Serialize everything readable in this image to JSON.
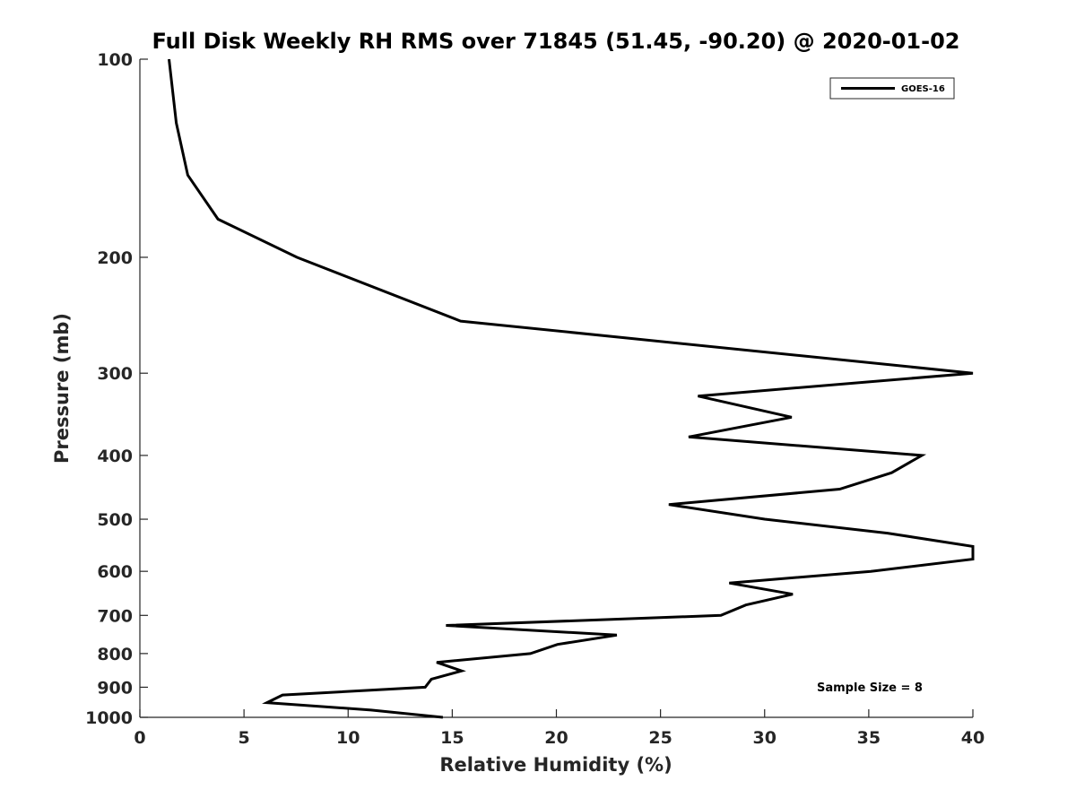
{
  "chart_data": {
    "type": "line",
    "title": "Full Disk Weekly RH RMS over 71845 (51.45, -90.20) @ 2020-01-02",
    "xlabel": "Relative Humidity (%)",
    "ylabel": "Pressure (mb)",
    "xlim": [
      0,
      40
    ],
    "ylim": [
      100,
      1000
    ],
    "y_scale": "log",
    "y_reversed": true,
    "x_ticks": [
      0,
      5,
      10,
      15,
      20,
      25,
      30,
      35,
      40
    ],
    "y_ticks": [
      100,
      200,
      300,
      400,
      500,
      600,
      700,
      800,
      900,
      1000
    ],
    "grid": false,
    "legend_position": "top-right",
    "series": [
      {
        "name": "GOES-16",
        "color": "#000000",
        "points": [
          {
            "x": 1.4,
            "y": 100
          },
          {
            "x": 1.75,
            "y": 125
          },
          {
            "x": 2.3,
            "y": 150
          },
          {
            "x": 3.75,
            "y": 175
          },
          {
            "x": 7.55,
            "y": 200
          },
          {
            "x": 15.4,
            "y": 250
          },
          {
            "x": 40.0,
            "y": 300
          },
          {
            "x": 26.8,
            "y": 325
          },
          {
            "x": 31.3,
            "y": 350
          },
          {
            "x": 26.35,
            "y": 375
          },
          {
            "x": 37.55,
            "y": 400
          },
          {
            "x": 36.1,
            "y": 425
          },
          {
            "x": 33.6,
            "y": 450
          },
          {
            "x": 25.4,
            "y": 475
          },
          {
            "x": 30.0,
            "y": 500
          },
          {
            "x": 35.9,
            "y": 525
          },
          {
            "x": 40.0,
            "y": 550
          },
          {
            "x": 40.0,
            "y": 575
          },
          {
            "x": 35.1,
            "y": 600
          },
          {
            "x": 28.3,
            "y": 625
          },
          {
            "x": 31.35,
            "y": 650
          },
          {
            "x": 29.1,
            "y": 675
          },
          {
            "x": 27.9,
            "y": 700
          },
          {
            "x": 14.7,
            "y": 725
          },
          {
            "x": 22.9,
            "y": 750
          },
          {
            "x": 20.05,
            "y": 775
          },
          {
            "x": 18.75,
            "y": 800
          },
          {
            "x": 14.25,
            "y": 825
          },
          {
            "x": 15.45,
            "y": 850
          },
          {
            "x": 14.0,
            "y": 875
          },
          {
            "x": 13.7,
            "y": 900
          },
          {
            "x": 6.85,
            "y": 925
          },
          {
            "x": 6.1,
            "y": 950
          },
          {
            "x": 11.1,
            "y": 975
          },
          {
            "x": 14.55,
            "y": 1000
          }
        ]
      }
    ],
    "annotation": "Sample Size = 8"
  }
}
